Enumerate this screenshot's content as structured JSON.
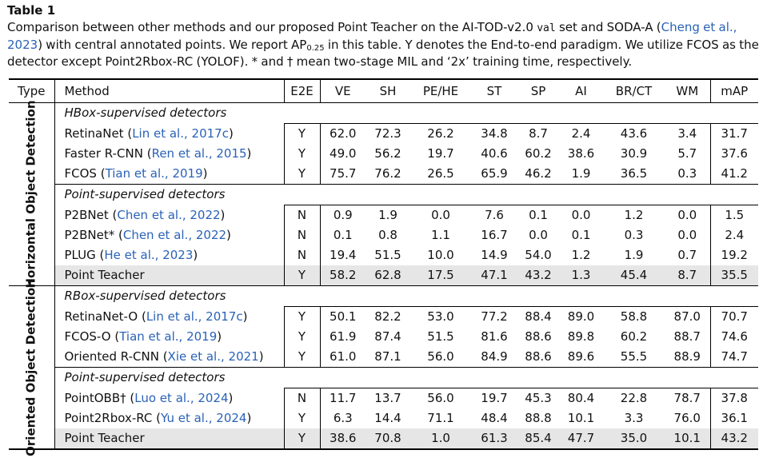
{
  "table_label": "Table 1",
  "caption": {
    "part1": "Comparison between other methods and our proposed Point Teacher on the AI-TOD-v2.0 ",
    "val": "val",
    "part2": " set and SODA-A (",
    "cite": "Cheng et al., 2023",
    "part3": ") with central annotated points. We report AP",
    "ap_sub": "0.25",
    "part4": " in this table. Y denotes the End-to-end paradigm. We utilize FCOS as the detector except Point2Rbox-RC (YOLOF). * and † mean two-stage MIL and ‘2x’ training time, respectively."
  },
  "columns": [
    "Type",
    "Method",
    "E2E",
    "VE",
    "SH",
    "PE/HE",
    "ST",
    "SP",
    "AI",
    "BR/CT",
    "WM",
    "mAP"
  ],
  "blocks": [
    {
      "type_label": "Horizontal Object Detection",
      "groups": [
        {
          "title": "HBox-supervised detectors",
          "rows": [
            {
              "name": "RetinaNet",
              "cite": "Lin et al., 2017c",
              "e2e": "Y",
              "vals": [
                "62.0",
                "72.3",
                "26.2",
                "34.8",
                "8.7",
                "2.4",
                "43.6",
                "3.4",
                "31.7"
              ]
            },
            {
              "name": "Faster R-CNN",
              "cite": "Ren et al., 2015",
              "e2e": "Y",
              "vals": [
                "49.0",
                "56.2",
                "19.7",
                "40.6",
                "60.2",
                "38.6",
                "30.9",
                "5.7",
                "37.6"
              ]
            },
            {
              "name": "FCOS",
              "cite": "Tian et al., 2019",
              "e2e": "Y",
              "vals": [
                "75.7",
                "76.2",
                "26.5",
                "65.9",
                "46.2",
                "1.9",
                "36.5",
                "0.3",
                "41.2"
              ]
            }
          ]
        },
        {
          "title": "Point-supervised detectors",
          "rows": [
            {
              "name": "P2BNet",
              "cite": "Chen et al., 2022",
              "e2e": "N",
              "vals": [
                "0.9",
                "1.9",
                "0.0",
                "7.6",
                "0.1",
                "0.0",
                "1.2",
                "0.0",
                "1.5"
              ]
            },
            {
              "name": "P2BNet*",
              "cite": "Chen et al., 2022",
              "e2e": "N",
              "vals": [
                "0.1",
                "0.8",
                "1.1",
                "16.7",
                "0.0",
                "0.1",
                "0.3",
                "0.0",
                "2.4"
              ]
            },
            {
              "name": "PLUG",
              "cite": "He et al., 2023",
              "e2e": "N",
              "vals": [
                "19.4",
                "51.5",
                "10.0",
                "14.9",
                "54.0",
                "1.2",
                "1.9",
                "0.7",
                "19.2"
              ]
            },
            {
              "name": "Point Teacher",
              "cite": "",
              "e2e": "Y",
              "vals": [
                "58.2",
                "62.8",
                "17.5",
                "47.1",
                "43.2",
                "1.3",
                "45.4",
                "8.7",
                "35.5"
              ],
              "highlight": true
            }
          ]
        }
      ]
    },
    {
      "type_label": "Oriented Object Detection",
      "groups": [
        {
          "title": "RBox-supervised detectors",
          "rows": [
            {
              "name": "RetinaNet-O",
              "cite": "Lin et al., 2017c",
              "e2e": "Y",
              "vals": [
                "50.1",
                "82.2",
                "53.0",
                "77.2",
                "88.4",
                "89.0",
                "58.8",
                "87.0",
                "70.7"
              ]
            },
            {
              "name": "FCOS-O",
              "cite": "Tian et al., 2019",
              "e2e": "Y",
              "vals": [
                "61.9",
                "87.4",
                "51.5",
                "81.6",
                "88.6",
                "89.8",
                "60.2",
                "88.7",
                "74.6"
              ]
            },
            {
              "name": "Oriented R-CNN",
              "cite": "Xie et al., 2021",
              "e2e": "Y",
              "vals": [
                "61.0",
                "87.1",
                "56.0",
                "84.9",
                "88.6",
                "89.6",
                "55.5",
                "88.9",
                "74.7"
              ]
            }
          ]
        },
        {
          "title": "Point-supervised detectors",
          "rows": [
            {
              "name": "PointOBB†",
              "cite": "Luo et al., 2024",
              "e2e": "N",
              "vals": [
                "11.7",
                "13.7",
                "56.0",
                "19.7",
                "45.3",
                "80.4",
                "22.8",
                "78.7",
                "37.8"
              ]
            },
            {
              "name": "Point2Rbox-RC",
              "cite": "Yu et al., 2024",
              "e2e": "Y",
              "vals": [
                "6.3",
                "14.4",
                "71.1",
                "48.4",
                "88.8",
                "10.1",
                "3.3",
                "76.0",
                "36.1"
              ]
            },
            {
              "name": "Point Teacher",
              "cite": "",
              "e2e": "Y",
              "vals": [
                "38.6",
                "70.8",
                "1.0",
                "61.3",
                "85.4",
                "47.7",
                "35.0",
                "10.1",
                "43.2"
              ],
              "highlight": true
            }
          ]
        }
      ]
    }
  ],
  "colors": {
    "highlight": "#e6e6e6",
    "citation": "#2a62b8"
  }
}
